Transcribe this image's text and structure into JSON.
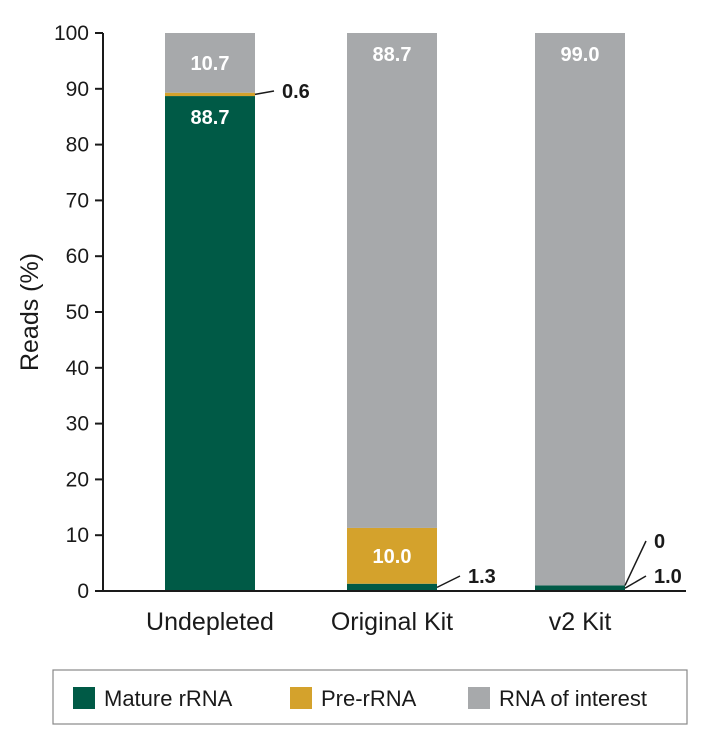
{
  "chart_data": {
    "type": "bar",
    "stacked": true,
    "categories": [
      "Undepleted",
      "Original Kit",
      "v2 Kit"
    ],
    "series": [
      {
        "name": "Mature rRNA",
        "color": "#005a46",
        "values": [
          88.7,
          1.3,
          1.0
        ]
      },
      {
        "name": "Pre-rRNA",
        "color": "#d4a22c",
        "values": [
          0.6,
          10.0,
          0
        ]
      },
      {
        "name": "RNA of interest",
        "color": "#a7a9ab",
        "values": [
          10.7,
          88.7,
          99.0
        ]
      }
    ],
    "data_labels": [
      {
        "category": 0,
        "series": 2,
        "text": "10.7",
        "placement": "inside"
      },
      {
        "category": 0,
        "series": 1,
        "text": "0.6",
        "placement": "outside"
      },
      {
        "category": 0,
        "series": 0,
        "text": "88.7",
        "placement": "inside"
      },
      {
        "category": 1,
        "series": 2,
        "text": "88.7",
        "placement": "inside"
      },
      {
        "category": 1,
        "series": 1,
        "text": "10.0",
        "placement": "inside"
      },
      {
        "category": 1,
        "series": 0,
        "text": "1.3",
        "placement": "outside"
      },
      {
        "category": 2,
        "series": 2,
        "text": "99.0",
        "placement": "inside"
      },
      {
        "category": 2,
        "series": 1,
        "text": "0",
        "placement": "outside"
      },
      {
        "category": 2,
        "series": 0,
        "text": "1.0",
        "placement": "outside"
      }
    ],
    "ylabel": "Reads (%)",
    "xlabel": "",
    "ylim": [
      0,
      100
    ],
    "yticks": [
      0,
      10,
      20,
      30,
      40,
      50,
      60,
      70,
      80,
      90,
      100
    ],
    "grid": false,
    "legend": "bottom"
  }
}
